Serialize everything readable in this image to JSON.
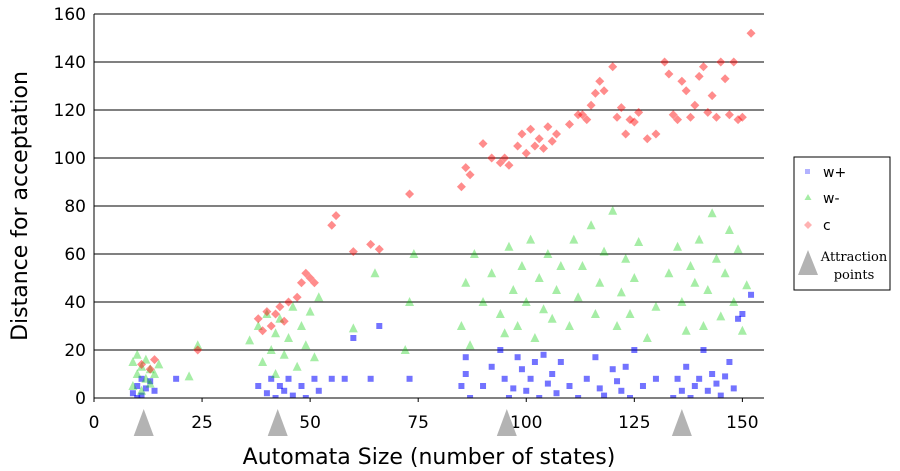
{
  "chart_data": {
    "type": "scatter",
    "title": "",
    "xlabel": "Automata Size (number of states)",
    "ylabel": "Distance for acceptation",
    "xlim": [
      0,
      155
    ],
    "ylim": [
      0,
      160
    ],
    "xticks": [
      "0",
      "25",
      "50",
      "75",
      "100",
      "125",
      "150"
    ],
    "yticks": [
      "0",
      "20",
      "40",
      "60",
      "80",
      "100",
      "120",
      "140",
      "160"
    ],
    "grid": "horizontal",
    "legend_position": "right",
    "attraction_points": {
      "label": "Attraction points",
      "x": [
        11.5,
        42.5,
        95.5,
        136
      ]
    },
    "series": [
      {
        "name": "w+",
        "color": "#0000ff",
        "marker": "square",
        "points": [
          [
            9,
            2
          ],
          [
            10,
            0
          ],
          [
            10,
            5
          ],
          [
            11,
            8
          ],
          [
            11,
            1
          ],
          [
            12,
            4
          ],
          [
            13,
            7
          ],
          [
            14,
            3
          ],
          [
            19,
            8
          ],
          [
            38,
            5
          ],
          [
            40,
            2
          ],
          [
            41,
            8
          ],
          [
            42,
            0
          ],
          [
            43,
            5
          ],
          [
            44,
            3
          ],
          [
            45,
            8
          ],
          [
            46,
            1
          ],
          [
            48,
            5
          ],
          [
            49,
            0
          ],
          [
            51,
            8
          ],
          [
            52,
            3
          ],
          [
            55,
            8
          ],
          [
            58,
            8
          ],
          [
            60,
            25
          ],
          [
            64,
            8
          ],
          [
            66,
            30
          ],
          [
            73,
            8
          ],
          [
            85,
            5
          ],
          [
            86,
            10
          ],
          [
            86,
            17
          ],
          [
            87,
            0
          ],
          [
            90,
            5
          ],
          [
            92,
            13
          ],
          [
            94,
            20
          ],
          [
            95,
            8
          ],
          [
            96,
            0
          ],
          [
            97,
            4
          ],
          [
            98,
            17
          ],
          [
            99,
            12
          ],
          [
            100,
            3
          ],
          [
            101,
            8
          ],
          [
            102,
            15
          ],
          [
            103,
            0
          ],
          [
            104,
            18
          ],
          [
            105,
            6
          ],
          [
            106,
            10
          ],
          [
            107,
            2
          ],
          [
            108,
            15
          ],
          [
            110,
            5
          ],
          [
            112,
            0
          ],
          [
            114,
            8
          ],
          [
            116,
            17
          ],
          [
            117,
            4
          ],
          [
            118,
            1
          ],
          [
            120,
            12
          ],
          [
            121,
            7
          ],
          [
            122,
            3
          ],
          [
            123,
            13
          ],
          [
            124,
            0
          ],
          [
            125,
            20
          ],
          [
            127,
            5
          ],
          [
            130,
            8
          ],
          [
            134,
            0
          ],
          [
            135,
            8
          ],
          [
            136,
            3
          ],
          [
            137,
            13
          ],
          [
            138,
            0
          ],
          [
            139,
            5
          ],
          [
            140,
            8
          ],
          [
            141,
            20
          ],
          [
            142,
            3
          ],
          [
            143,
            10
          ],
          [
            144,
            6
          ],
          [
            145,
            1
          ],
          [
            146,
            9
          ],
          [
            147,
            15
          ],
          [
            148,
            4
          ],
          [
            149,
            33
          ],
          [
            150,
            35
          ],
          [
            152,
            43
          ]
        ]
      },
      {
        "name": "w-",
        "color": "#00cc00",
        "marker": "triangle",
        "points": [
          [
            9,
            5
          ],
          [
            9,
            15
          ],
          [
            10,
            10
          ],
          [
            10,
            18
          ],
          [
            11,
            3
          ],
          [
            11,
            13
          ],
          [
            12,
            8
          ],
          [
            12,
            16
          ],
          [
            13,
            6
          ],
          [
            13,
            12
          ],
          [
            14,
            10
          ],
          [
            15,
            14
          ],
          [
            22,
            9
          ],
          [
            24,
            22
          ],
          [
            36,
            24
          ],
          [
            38,
            30
          ],
          [
            39,
            15
          ],
          [
            40,
            35
          ],
          [
            41,
            20
          ],
          [
            42,
            27
          ],
          [
            42,
            10
          ],
          [
            43,
            33
          ],
          [
            44,
            18
          ],
          [
            45,
            25
          ],
          [
            46,
            38
          ],
          [
            47,
            13
          ],
          [
            48,
            30
          ],
          [
            49,
            22
          ],
          [
            50,
            36
          ],
          [
            51,
            17
          ],
          [
            52,
            42
          ],
          [
            60,
            29
          ],
          [
            65,
            52
          ],
          [
            72,
            20
          ],
          [
            73,
            40
          ],
          [
            74,
            60
          ],
          [
            85,
            30
          ],
          [
            86,
            48
          ],
          [
            87,
            22
          ],
          [
            88,
            60
          ],
          [
            90,
            40
          ],
          [
            92,
            52
          ],
          [
            94,
            35
          ],
          [
            95,
            27
          ],
          [
            96,
            63
          ],
          [
            97,
            45
          ],
          [
            98,
            30
          ],
          [
            99,
            55
          ],
          [
            100,
            40
          ],
          [
            101,
            66
          ],
          [
            102,
            25
          ],
          [
            103,
            50
          ],
          [
            104,
            37
          ],
          [
            105,
            60
          ],
          [
            106,
            33
          ],
          [
            107,
            45
          ],
          [
            108,
            55
          ],
          [
            110,
            30
          ],
          [
            111,
            66
          ],
          [
            112,
            42
          ],
          [
            113,
            55
          ],
          [
            115,
            72
          ],
          [
            116,
            35
          ],
          [
            117,
            48
          ],
          [
            118,
            61
          ],
          [
            120,
            78
          ],
          [
            121,
            30
          ],
          [
            122,
            44
          ],
          [
            123,
            58
          ],
          [
            124,
            35
          ],
          [
            125,
            50
          ],
          [
            126,
            65
          ],
          [
            128,
            25
          ],
          [
            130,
            38
          ],
          [
            133,
            52
          ],
          [
            135,
            63
          ],
          [
            136,
            40
          ],
          [
            137,
            28
          ],
          [
            138,
            55
          ],
          [
            139,
            48
          ],
          [
            140,
            66
          ],
          [
            141,
            30
          ],
          [
            142,
            45
          ],
          [
            143,
            77
          ],
          [
            144,
            58
          ],
          [
            145,
            34
          ],
          [
            146,
            52
          ],
          [
            147,
            70
          ],
          [
            148,
            40
          ],
          [
            149,
            62
          ],
          [
            150,
            28
          ],
          [
            151,
            47
          ]
        ]
      },
      {
        "name": "c",
        "color": "#ff0000",
        "marker": "diamond",
        "points": [
          [
            11,
            14
          ],
          [
            13,
            12
          ],
          [
            14,
            16
          ],
          [
            24,
            20
          ],
          [
            38,
            33
          ],
          [
            39,
            28
          ],
          [
            40,
            36
          ],
          [
            41,
            30
          ],
          [
            42,
            35
          ],
          [
            43,
            38
          ],
          [
            44,
            32
          ],
          [
            45,
            40
          ],
          [
            47,
            42
          ],
          [
            48,
            48
          ],
          [
            49,
            52
          ],
          [
            50,
            50
          ],
          [
            51,
            48
          ],
          [
            55,
            72
          ],
          [
            56,
            76
          ],
          [
            60,
            61
          ],
          [
            64,
            64
          ],
          [
            66,
            62
          ],
          [
            73,
            85
          ],
          [
            85,
            88
          ],
          [
            86,
            96
          ],
          [
            87,
            93
          ],
          [
            90,
            106
          ],
          [
            92,
            100
          ],
          [
            94,
            98
          ],
          [
            95,
            100
          ],
          [
            96,
            97
          ],
          [
            98,
            105
          ],
          [
            99,
            110
          ],
          [
            100,
            102
          ],
          [
            101,
            112
          ],
          [
            102,
            105
          ],
          [
            103,
            108
          ],
          [
            104,
            104
          ],
          [
            105,
            113
          ],
          [
            106,
            107
          ],
          [
            107,
            110
          ],
          [
            110,
            114
          ],
          [
            112,
            118
          ],
          [
            113,
            118
          ],
          [
            114,
            116
          ],
          [
            115,
            122
          ],
          [
            116,
            127
          ],
          [
            117,
            132
          ],
          [
            118,
            128
          ],
          [
            120,
            138
          ],
          [
            121,
            117
          ],
          [
            122,
            121
          ],
          [
            123,
            110
          ],
          [
            124,
            116
          ],
          [
            125,
            115
          ],
          [
            126,
            119
          ],
          [
            128,
            108
          ],
          [
            130,
            110
          ],
          [
            132,
            140
          ],
          [
            133,
            135
          ],
          [
            134,
            118
          ],
          [
            135,
            116
          ],
          [
            136,
            132
          ],
          [
            137,
            128
          ],
          [
            138,
            117
          ],
          [
            139,
            122
          ],
          [
            140,
            134
          ],
          [
            141,
            138
          ],
          [
            142,
            119
          ],
          [
            143,
            126
          ],
          [
            144,
            117
          ],
          [
            145,
            140
          ],
          [
            146,
            133
          ],
          [
            147,
            118
          ],
          [
            148,
            140
          ],
          [
            149,
            116
          ],
          [
            150,
            117
          ],
          [
            152,
            152
          ]
        ]
      }
    ]
  }
}
